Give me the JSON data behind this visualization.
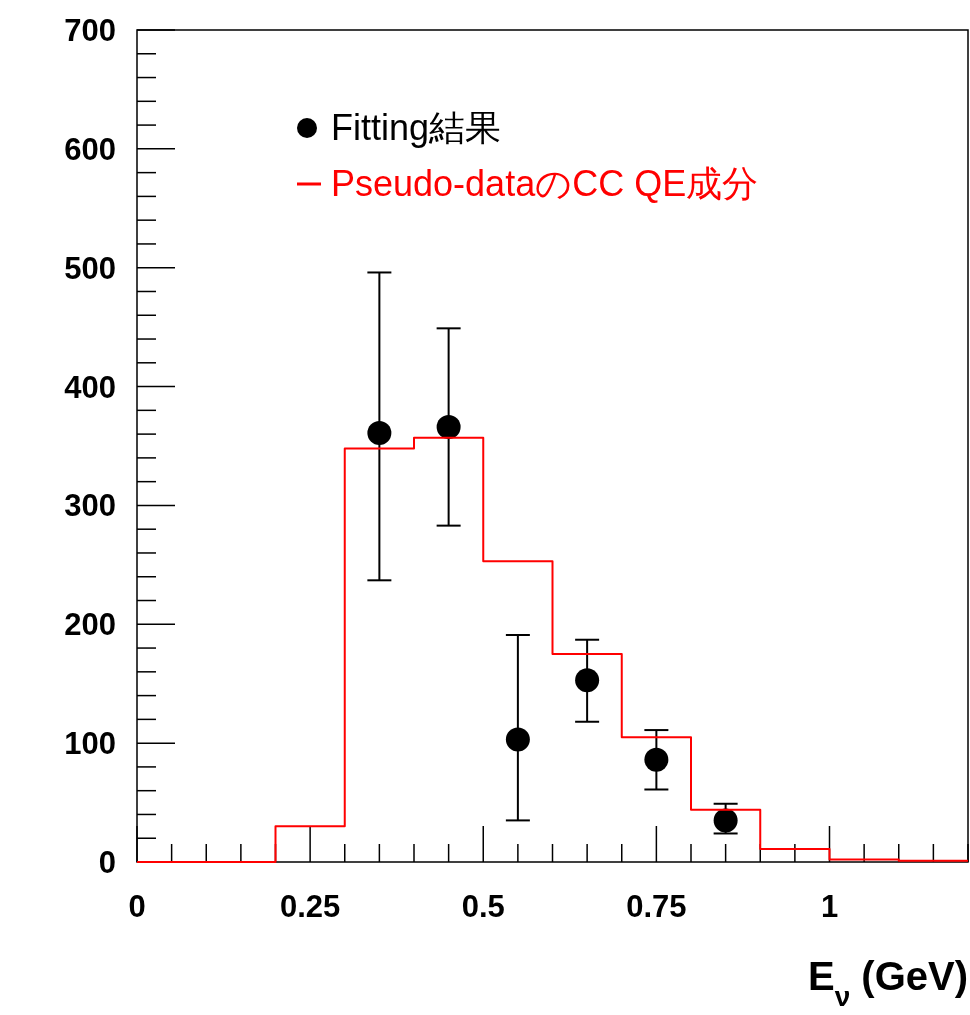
{
  "chart_data": {
    "type": "histogram",
    "xlabel": "E$_{ν}$ (GeV)",
    "xlim": [
      0,
      1.2
    ],
    "xticks": [
      0,
      0.25,
      0.5,
      0.75,
      1
    ],
    "ylim": [
      0,
      700
    ],
    "yticks": [
      0,
      100,
      200,
      300,
      400,
      500,
      600,
      700
    ],
    "grid": false,
    "legend": "top left",
    "series": [
      {
        "type": "scatter",
        "name": "Fitting結果",
        "color": "#000000",
        "marker": "circle",
        "x": [
          0.35,
          0.45,
          0.55,
          0.65,
          0.75,
          0.85
        ],
        "values": [
          361,
          366,
          103,
          153,
          86,
          35
        ],
        "errors": [
          [
            237,
            496
          ],
          [
            283,
            449
          ],
          [
            35,
            191
          ],
          [
            118,
            187
          ],
          [
            61,
            111
          ],
          [
            24,
            49
          ]
        ]
      },
      {
        "name": "Pseudo-dataのCC QE成分",
        "color": "#ff0000",
        "bins": [
          0,
          0.1,
          0.2,
          0.3,
          0.4,
          0.5,
          0.6,
          0.7,
          0.8,
          0.9,
          1.0,
          1.1,
          1.2
        ],
        "values": [
          0,
          0,
          30,
          348,
          357,
          253,
          175,
          105,
          44,
          11,
          2,
          1
        ]
      }
    ]
  }
}
